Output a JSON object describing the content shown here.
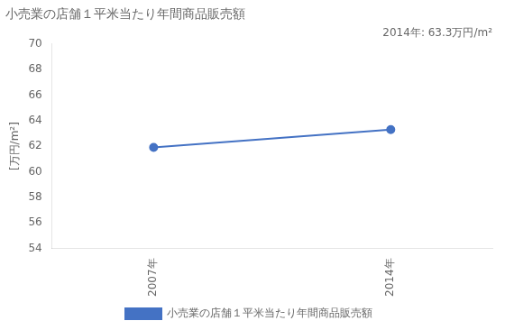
{
  "chart_data": {
    "type": "line",
    "title": "小売業の店舗１平米当たり年間商品販売額",
    "ylabel": "[万円/m²]",
    "annotation": "2014年: 63.3万円/m²",
    "x": [
      2007,
      2014
    ],
    "series": [
      {
        "name": "小売業の店舗１平米当たり年間商品販売額",
        "color": "#4472C4",
        "values": [
          61.9,
          63.3
        ],
        "marker": "circle",
        "line_style": "solid"
      }
    ],
    "xlim": [
      2004,
      2017
    ],
    "xticks": [
      {
        "value": 2007,
        "label": "2007年"
      },
      {
        "value": 2014,
        "label": "2014年"
      }
    ],
    "ylim": [
      54,
      70
    ],
    "yticks": [
      54,
      56,
      58,
      60,
      62,
      64,
      66,
      68,
      70
    ],
    "grid": false,
    "legend": "bottom"
  }
}
